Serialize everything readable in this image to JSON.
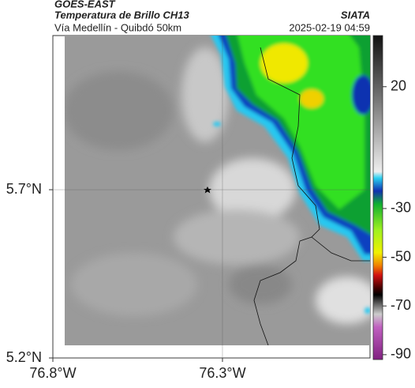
{
  "header": {
    "product": "GOES-EAST",
    "title": "Temperatura de Brillo CH13",
    "location": "Vía Medellín - Quibdó 50km",
    "source": "SIATA",
    "datetime": "2025-02-19 04:59"
  },
  "map": {
    "lonlim": [
      -76.8,
      -75.865
    ],
    "latlim": [
      5.2,
      6.158
    ],
    "lonticks": [
      {
        "value": -76.8,
        "label": "76.8°W"
      },
      {
        "value": -76.3,
        "label": "76.3°W"
      }
    ],
    "latticks": [
      {
        "value": 5.7,
        "label": "5.7°N"
      },
      {
        "value": 5.2,
        "label": "5.2°N"
      }
    ]
  },
  "colorbar": {
    "lim": [
      -92,
      41
    ],
    "ticks": [
      20,
      -30,
      -50,
      -70,
      -90
    ]
  }
}
